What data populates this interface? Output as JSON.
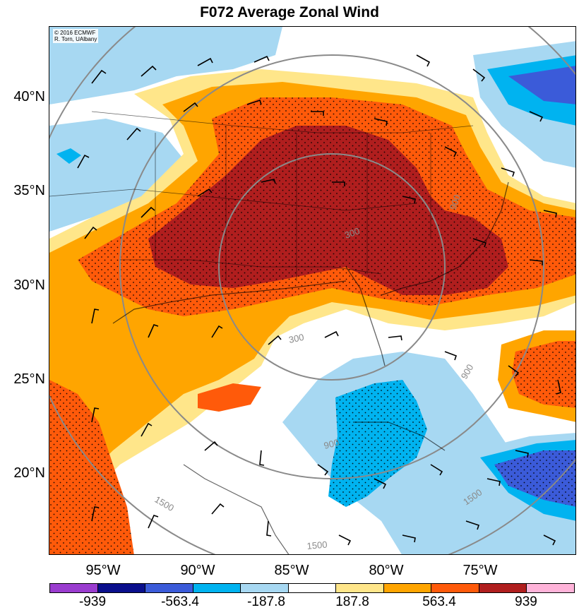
{
  "title": "F072 Average Zonal Wind",
  "credit": {
    "line1": "© 2016 ECMWF",
    "line2": "R. Torn, UAlbany"
  },
  "lat_labels": [
    "40°N",
    "35°N",
    "30°N",
    "25°N",
    "20°N"
  ],
  "lon_labels": [
    "95°W",
    "90°W",
    "85°W",
    "80°W",
    "75°W"
  ],
  "contour_labels": [
    "300",
    "900",
    "900",
    "1500",
    "1500",
    "1500",
    "300",
    "900"
  ],
  "colorbar": {
    "colors": [
      "#9a3ccf",
      "#0a0f8c",
      "#3b5bd9",
      "#00b3f0",
      "#a7d8f2",
      "#ffffff",
      "#ffe68a",
      "#ffa500",
      "#ff5a0a",
      "#b01e1e",
      "#ffb3d9"
    ],
    "labels": [
      "-939",
      "-563.4",
      "-187.8",
      "187.8",
      "563.4",
      "939"
    ]
  },
  "colors": {
    "dark_red": "#b01e1e",
    "red_orange": "#ff5a0a",
    "orange": "#ffa500",
    "yellow": "#ffe68a",
    "light_blue": "#a7d8f2",
    "cyan": "#00b3f0",
    "medium_blue": "#3b5bd9"
  }
}
